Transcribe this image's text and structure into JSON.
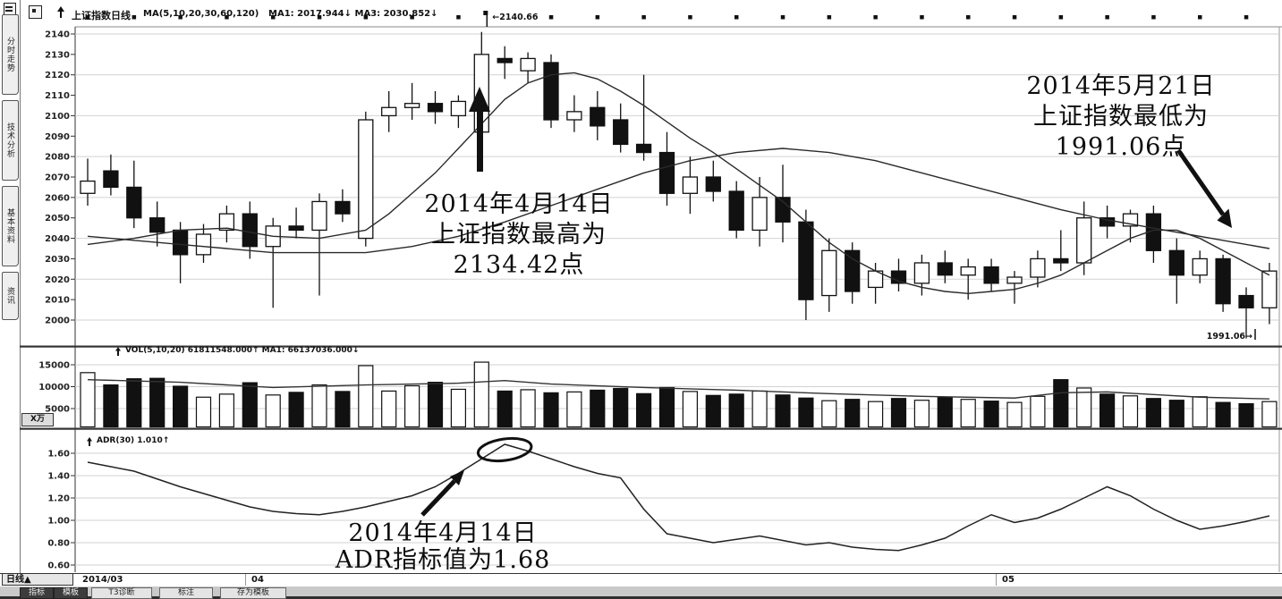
{
  "header": {
    "title": "上证指数日线",
    "ma_params": "MA(5,10,20,30,60,120)",
    "ma_values": "MA1: 2017.944↓  MA3: 2030.852↓"
  },
  "sidebar": {
    "tabs": [
      {
        "label": "分时走势"
      },
      {
        "label": "技术分析"
      },
      {
        "label": "基本资料"
      },
      {
        "label": "资讯"
      }
    ]
  },
  "volume_panel": {
    "header": "VOL(5,10,20)  61811548.000↑  MA1: 66137036.000↓",
    "unit": "X万"
  },
  "adr_panel": {
    "header": "ADR(30)  1.010↑"
  },
  "annotations": {
    "peak": {
      "line1": "2014年4月14日",
      "line2": "上证指数最高为",
      "line3": "2134.42点"
    },
    "trough": {
      "line1": "2014年5月21日",
      "line2": "上证指数最低为",
      "line3": "1991.06点"
    },
    "adr": {
      "line1": "2014年4月14日",
      "line2": "ADR指标值为1.68"
    }
  },
  "footer": {
    "period_label": "日线▲",
    "dates": [
      {
        "label": "2014/03",
        "x": 92
      },
      {
        "label": "04",
        "x": 281
      },
      {
        "label": "05",
        "x": 1120
      }
    ],
    "toolbar": [
      {
        "label": "指标",
        "selected": true
      },
      {
        "label": "模板",
        "selected": true
      },
      {
        "label": "T3诊断",
        "selected": false
      },
      {
        "label": "标注",
        "selected": false
      },
      {
        "label": "存为模板",
        "selected": false
      }
    ]
  },
  "colors": {
    "ink": "#111111",
    "grid": "#d2d2d2",
    "divider": "#333333"
  },
  "chart_data": [
    {
      "type": "candlestick",
      "name": "kline",
      "title": "上证指数日线",
      "ylim": [
        1988,
        2143
      ],
      "yticks": [
        2140,
        2130,
        2120,
        2110,
        2100,
        2090,
        2080,
        2070,
        2060,
        2050,
        2040,
        2030,
        2020,
        2010,
        2000
      ],
      "gridlines": [
        2140,
        2120,
        2100,
        2080,
        2060,
        2040,
        2020,
        2000
      ],
      "x_axis_dates": [
        "2014/03",
        "04",
        "05"
      ],
      "high_marker": {
        "label": "←2140.66",
        "candle_index": 17
      },
      "low_marker": {
        "label": "1991.06→",
        "candle_index": 50
      },
      "candles": [
        [
          2062,
          2079,
          2056,
          2068
        ],
        [
          2073,
          2081,
          2061,
          2065
        ],
        [
          2065,
          2078,
          2045,
          2050
        ],
        [
          2050,
          2058,
          2036,
          2043
        ],
        [
          2044,
          2048,
          2018,
          2032
        ],
        [
          2032,
          2047,
          2028,
          2042
        ],
        [
          2044,
          2056,
          2038,
          2052
        ],
        [
          2052,
          2058,
          2030,
          2036
        ],
        [
          2036,
          2050,
          2006,
          2046
        ],
        [
          2046,
          2055,
          2040,
          2044
        ],
        [
          2044,
          2062,
          2012,
          2058
        ],
        [
          2058,
          2064,
          2048,
          2052
        ],
        [
          2040,
          2102,
          2036,
          2098
        ],
        [
          2100,
          2112,
          2092,
          2104
        ],
        [
          2104,
          2116,
          2098,
          2106
        ],
        [
          2106,
          2112,
          2096,
          2102
        ],
        [
          2100,
          2110,
          2094,
          2107
        ],
        [
          2092,
          2141,
          2086,
          2130
        ],
        [
          2128,
          2134,
          2118,
          2126
        ],
        [
          2122,
          2131,
          2116,
          2128
        ],
        [
          2126,
          2130,
          2094,
          2098
        ],
        [
          2098,
          2110,
          2092,
          2102
        ],
        [
          2104,
          2112,
          2088,
          2095
        ],
        [
          2098,
          2106,
          2082,
          2086
        ],
        [
          2086,
          2120,
          2078,
          2082
        ],
        [
          2082,
          2092,
          2056,
          2062
        ],
        [
          2062,
          2080,
          2052,
          2070
        ],
        [
          2070,
          2078,
          2058,
          2063
        ],
        [
          2063,
          2068,
          2040,
          2044
        ],
        [
          2044,
          2070,
          2036,
          2060
        ],
        [
          2060,
          2076,
          2038,
          2048
        ],
        [
          2048,
          2054,
          2000,
          2010
        ],
        [
          2012,
          2040,
          2004,
          2034
        ],
        [
          2034,
          2038,
          2008,
          2014
        ],
        [
          2016,
          2028,
          2008,
          2024
        ],
        [
          2024,
          2030,
          2014,
          2018
        ],
        [
          2018,
          2032,
          2012,
          2028
        ],
        [
          2028,
          2034,
          2018,
          2022
        ],
        [
          2022,
          2030,
          2010,
          2026
        ],
        [
          2026,
          2030,
          2014,
          2018
        ],
        [
          2018,
          2024,
          2008,
          2021
        ],
        [
          2021,
          2034,
          2016,
          2030
        ],
        [
          2030,
          2044,
          2024,
          2028
        ],
        [
          2028,
          2058,
          2022,
          2050
        ],
        [
          2050,
          2056,
          2040,
          2046
        ],
        [
          2046,
          2054,
          2038,
          2052
        ],
        [
          2052,
          2056,
          2028,
          2034
        ],
        [
          2034,
          2040,
          2008,
          2022
        ],
        [
          2022,
          2034,
          2018,
          2030
        ],
        [
          2030,
          2032,
          2004,
          2008
        ],
        [
          2012,
          2016,
          1991,
          2006
        ],
        [
          2006,
          2028,
          1998,
          2024
        ]
      ],
      "ma_lines": [
        {
          "name": "ma-fast",
          "points": [
            [
              0,
              2037
            ],
            [
              2,
              2040
            ],
            [
              4,
              2044
            ],
            [
              6,
              2045
            ],
            [
              8,
              2041
            ],
            [
              10,
              2040
            ],
            [
              12,
              2044
            ],
            [
              13,
              2052
            ],
            [
              14,
              2062
            ],
            [
              15,
              2072
            ],
            [
              16,
              2084
            ],
            [
              17,
              2096
            ],
            [
              18,
              2108
            ],
            [
              19,
              2116
            ],
            [
              20,
              2120
            ],
            [
              21,
              2121
            ],
            [
              22,
              2118
            ],
            [
              23,
              2112
            ],
            [
              24,
              2105
            ],
            [
              25,
              2097
            ],
            [
              26,
              2089
            ],
            [
              27,
              2082
            ],
            [
              28,
              2074
            ],
            [
              29,
              2066
            ],
            [
              30,
              2058
            ],
            [
              31,
              2048
            ],
            [
              32,
              2038
            ],
            [
              33,
              2030
            ],
            [
              34,
              2024
            ],
            [
              35,
              2019
            ],
            [
              36,
              2016
            ],
            [
              37,
              2014
            ],
            [
              38,
              2013
            ],
            [
              39,
              2014
            ],
            [
              40,
              2015
            ],
            [
              41,
              2018
            ],
            [
              42,
              2022
            ],
            [
              43,
              2028
            ],
            [
              44,
              2034
            ],
            [
              45,
              2040
            ],
            [
              46,
              2044
            ],
            [
              47,
              2044
            ],
            [
              48,
              2040
            ],
            [
              49,
              2034
            ],
            [
              50,
              2028
            ],
            [
              51,
              2022
            ]
          ]
        },
        {
          "name": "ma-slow",
          "points": [
            [
              0,
              2041
            ],
            [
              4,
              2037
            ],
            [
              8,
              2033
            ],
            [
              12,
              2033
            ],
            [
              14,
              2036
            ],
            [
              16,
              2041
            ],
            [
              18,
              2048
            ],
            [
              20,
              2056
            ],
            [
              22,
              2064
            ],
            [
              24,
              2072
            ],
            [
              26,
              2078
            ],
            [
              28,
              2082
            ],
            [
              30,
              2084
            ],
            [
              32,
              2082
            ],
            [
              34,
              2078
            ],
            [
              36,
              2072
            ],
            [
              38,
              2066
            ],
            [
              40,
              2060
            ],
            [
              42,
              2054
            ],
            [
              44,
              2049
            ],
            [
              46,
              2045
            ],
            [
              48,
              2041
            ],
            [
              50,
              2037
            ],
            [
              51,
              2035
            ]
          ]
        }
      ]
    },
    {
      "type": "bar",
      "name": "volume",
      "title": "VOL(5,10,20)",
      "yticks": [
        15000,
        10000,
        5000
      ],
      "unit_label": "X万",
      "values": [
        13200,
        10400,
        11800,
        11900,
        10100,
        7600,
        8300,
        10900,
        8100,
        8700,
        10400,
        8900,
        14800,
        9000,
        10200,
        11000,
        9400,
        15600,
        9000,
        9300,
        8600,
        8800,
        9200,
        9600,
        8400,
        9800,
        8900,
        8000,
        8300,
        9000,
        8100,
        7400,
        6800,
        7100,
        6600,
        7300,
        6900,
        7600,
        7100,
        6700,
        6400,
        7800,
        11600,
        9700,
        8300,
        7900,
        7300,
        6900,
        7700,
        6400,
        6100,
        6600
      ],
      "ma_points": [
        [
          0,
          11600
        ],
        [
          4,
          11000
        ],
        [
          8,
          9800
        ],
        [
          12,
          10400
        ],
        [
          16,
          10800
        ],
        [
          18,
          11400
        ],
        [
          20,
          10600
        ],
        [
          24,
          9800
        ],
        [
          28,
          9200
        ],
        [
          32,
          8400
        ],
        [
          36,
          7800
        ],
        [
          40,
          7400
        ],
        [
          42,
          8600
        ],
        [
          44,
          8800
        ],
        [
          46,
          8200
        ],
        [
          48,
          7600
        ],
        [
          51,
          7200
        ]
      ]
    },
    {
      "type": "line",
      "name": "ADR",
      "title": "ADR(30)",
      "yticks": [
        1.6,
        1.4,
        1.2,
        1.0,
        0.8,
        0.6
      ],
      "values": [
        1.52,
        1.48,
        1.44,
        1.37,
        1.3,
        1.24,
        1.18,
        1.12,
        1.08,
        1.06,
        1.05,
        1.08,
        1.12,
        1.17,
        1.22,
        1.3,
        1.42,
        1.55,
        1.68,
        1.62,
        1.55,
        1.48,
        1.42,
        1.38,
        1.1,
        0.88,
        0.84,
        0.8,
        0.83,
        0.86,
        0.82,
        0.78,
        0.8,
        0.76,
        0.74,
        0.73,
        0.78,
        0.84,
        0.95,
        1.05,
        0.98,
        1.02,
        1.1,
        1.2,
        1.3,
        1.22,
        1.1,
        1.0,
        0.92,
        0.95,
        0.99,
        1.04
      ],
      "highlight": {
        "index": 18,
        "value": 1.68
      }
    }
  ]
}
